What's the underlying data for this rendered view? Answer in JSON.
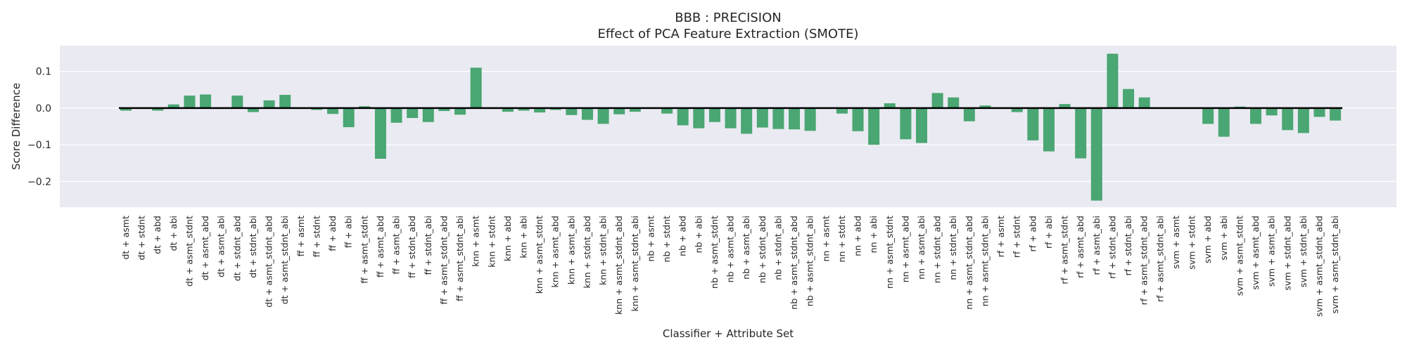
{
  "chart_data": {
    "type": "bar",
    "title": "BBB : PRECISION",
    "subtitle": "Effect of PCA Feature Extraction (SMOTE)",
    "xlabel": "Classifier + Attribute Set",
    "ylabel": "Score Difference",
    "ylim": [
      -0.27,
      0.17
    ],
    "yticks": [
      0.1,
      0.0,
      -0.1,
      -0.2
    ],
    "ytick_labels": [
      "0.1",
      "0.0",
      "−0.1",
      "−0.2"
    ],
    "grid": true,
    "categories": [
      "dt + asmt",
      "dt + stdnt",
      "dt + abd",
      "dt + abi",
      "dt + asmt_stdnt",
      "dt + asmt_abd",
      "dt + asmt_abi",
      "dt + stdnt_abd",
      "dt + stdnt_abi",
      "dt + asmt_stdnt_abd",
      "dt + asmt_stdnt_abi",
      "ff + asmt",
      "ff + stdnt",
      "ff + abd",
      "ff + abi",
      "ff + asmt_stdnt",
      "ff + asmt_abd",
      "ff + asmt_abi",
      "ff + stdnt_abd",
      "ff + stdnt_abi",
      "ff + asmt_stdnt_abd",
      "ff + asmt_stdnt_abi",
      "knn + asmt",
      "knn + stdnt",
      "knn + abd",
      "knn + abi",
      "knn + asmt_stdnt",
      "knn + asmt_abd",
      "knn + asmt_abi",
      "knn + stdnt_abd",
      "knn + stdnt_abi",
      "knn + asmt_stdnt_abd",
      "knn + asmt_stdnt_abi",
      "nb + asmt",
      "nb + stdnt",
      "nb + abd",
      "nb + abi",
      "nb + asmt_stdnt",
      "nb + asmt_abd",
      "nb + asmt_abi",
      "nb + stdnt_abd",
      "nb + stdnt_abi",
      "nb + asmt_stdnt_abd",
      "nb + asmt_stdnt_abi",
      "nn + asmt",
      "nn + stdnt",
      "nn + abd",
      "nn + abi",
      "nn + asmt_stdnt",
      "nn + asmt_abd",
      "nn + asmt_abi",
      "nn + stdnt_abd",
      "nn + stdnt_abi",
      "nn + asmt_stdnt_abd",
      "nn + asmt_stdnt_abi",
      "rf + asmt",
      "rf + stdnt",
      "rf + abd",
      "rf + abi",
      "rf + asmt_stdnt",
      "rf + asmt_abd",
      "rf + asmt_abi",
      "rf + stdnt_abd",
      "rf + stdnt_abi",
      "rf + asmt_stdnt_abd",
      "rf + asmt_stdnt_abi",
      "svm + asmt",
      "svm + stdnt",
      "svm + abd",
      "svm + abi",
      "svm + asmt_stdnt",
      "svm + asmt_abd",
      "svm + asmt_abi",
      "svm + stdnt_abd",
      "svm + stdnt_abi",
      "svm + asmt_stdnt_abd",
      "svm + asmt_stdnt_abi"
    ],
    "values": [
      -0.007,
      0.0,
      -0.007,
      0.01,
      0.034,
      0.037,
      0.0,
      0.034,
      -0.011,
      0.021,
      0.036,
      0.0,
      -0.005,
      -0.016,
      -0.052,
      0.005,
      -0.138,
      -0.04,
      -0.027,
      -0.038,
      -0.008,
      -0.018,
      0.11,
      0.0,
      -0.01,
      -0.007,
      -0.012,
      -0.005,
      -0.019,
      -0.032,
      -0.043,
      -0.017,
      -0.01,
      0.0,
      -0.015,
      -0.047,
      -0.055,
      -0.038,
      -0.055,
      -0.07,
      -0.053,
      -0.057,
      -0.058,
      -0.062,
      0.0,
      -0.015,
      -0.063,
      -0.1,
      0.013,
      -0.085,
      -0.095,
      0.041,
      0.029,
      -0.036,
      0.007,
      0.0,
      -0.011,
      -0.088,
      -0.118,
      0.011,
      -0.137,
      -0.252,
      0.148,
      0.052,
      0.029,
      0.0,
      0.0,
      0.0,
      -0.043,
      -0.078,
      0.004,
      -0.043,
      -0.02,
      -0.06,
      -0.068,
      -0.024,
      -0.034
    ],
    "colors": {
      "bar": "#4aa672",
      "plot_bg": "#eaeaf2",
      "grid": "#ffffff",
      "zero_line": "#000000",
      "text": "#262626"
    }
  }
}
